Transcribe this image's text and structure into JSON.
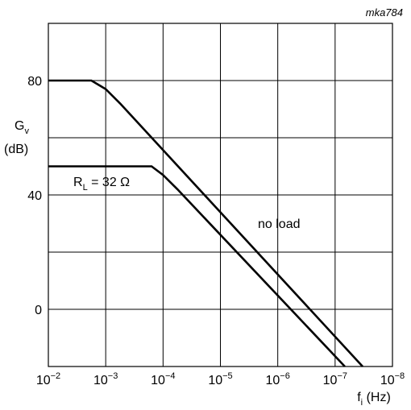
{
  "figure_code": "mka784",
  "chart_data": {
    "type": "line",
    "xscale": "log",
    "xlabel": "f",
    "xlabel_sub": "i",
    "xlabel_unit": " (Hz)",
    "ylabel_line1": "G",
    "ylabel_sub": "v",
    "ylabel_line2": "(dB)",
    "xlim_exp": [
      -2,
      -8
    ],
    "ylim": [
      -20,
      100
    ],
    "y_ticks": [
      {
        "value": 80,
        "label": "80"
      },
      {
        "value": 40,
        "label": "40"
      },
      {
        "value": 0,
        "label": "0"
      }
    ],
    "x_ticks": [
      {
        "exp": -2,
        "base": "10",
        "sup": "−2"
      },
      {
        "exp": -3,
        "base": "10",
        "sup": "−3"
      },
      {
        "exp": -4,
        "base": "10",
        "sup": "−4"
      },
      {
        "exp": -5,
        "base": "10",
        "sup": "−5"
      },
      {
        "exp": -6,
        "base": "10",
        "sup": "−6"
      },
      {
        "exp": -7,
        "base": "10",
        "sup": "−7"
      },
      {
        "exp": -8,
        "base": "10",
        "sup": "−8"
      }
    ],
    "grid": true,
    "series": [
      {
        "name": "no load",
        "points": [
          {
            "exp": -2.0,
            "y": 80
          },
          {
            "exp": -2.75,
            "y": 80
          },
          {
            "exp": -3.0,
            "y": 77
          },
          {
            "exp": -3.25,
            "y": 72
          },
          {
            "exp": -7.48,
            "y": -20
          }
        ]
      },
      {
        "name": "R_L = 32 Ω",
        "label_main": "R",
        "label_sub": "L",
        "label_rest": " = 32 Ω",
        "points": [
          {
            "exp": -2.0,
            "y": 50
          },
          {
            "exp": -3.8,
            "y": 50
          },
          {
            "exp": -4.0,
            "y": 47
          },
          {
            "exp": -4.25,
            "y": 42
          },
          {
            "exp": -7.17,
            "y": -20
          }
        ]
      }
    ]
  }
}
